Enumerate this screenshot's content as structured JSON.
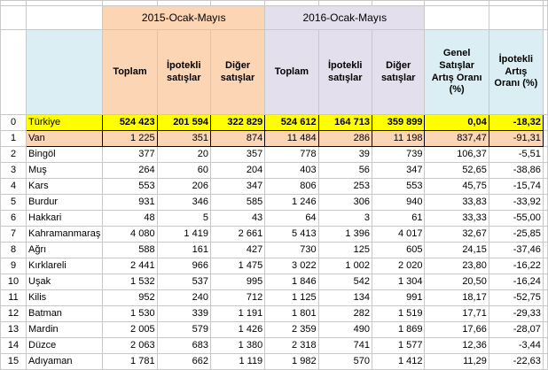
{
  "group_headers": {
    "g2015": "2015-Ocak-Mayıs",
    "g2016": "2016-Ocak-Mayıs"
  },
  "column_headers": {
    "toplam_2015": "Toplam",
    "ipotekli_2015": "İpotekli satışlar",
    "diger_2015": "Diğer satışlar",
    "toplam_2016": "Toplam",
    "ipotekli_2016": "İpotekli satışlar",
    "diger_2016": "Diğer satışlar",
    "genel": "Genel Satışlar Artış Oranı (%)",
    "ipotekli_artis": "İpotekli Artış Oranı (%)"
  },
  "rows": [
    {
      "idx": "0",
      "name": "Türkiye",
      "c1": "524 423",
      "c2": "201 594",
      "c3": "322 829",
      "c4": "524 612",
      "c5": "164 713",
      "c6": "359 899",
      "c7": "0,04",
      "c8": "-18,32"
    },
    {
      "idx": "1",
      "name": "Van",
      "c1": "1 225",
      "c2": "351",
      "c3": "874",
      "c4": "11 484",
      "c5": "286",
      "c6": "11 198",
      "c7": "837,47",
      "c8": "-91,31"
    },
    {
      "idx": "2",
      "name": "Bingöl",
      "c1": "377",
      "c2": "20",
      "c3": "357",
      "c4": "778",
      "c5": "39",
      "c6": "739",
      "c7": "106,37",
      "c8": "-5,51"
    },
    {
      "idx": "3",
      "name": "Muş",
      "c1": "264",
      "c2": "60",
      "c3": "204",
      "c4": "403",
      "c5": "56",
      "c6": "347",
      "c7": "52,65",
      "c8": "-38,86"
    },
    {
      "idx": "4",
      "name": "Kars",
      "c1": "553",
      "c2": "206",
      "c3": "347",
      "c4": "806",
      "c5": "253",
      "c6": "553",
      "c7": "45,75",
      "c8": "-15,74"
    },
    {
      "idx": "5",
      "name": "Burdur",
      "c1": "931",
      "c2": "346",
      "c3": "585",
      "c4": "1 246",
      "c5": "306",
      "c6": "940",
      "c7": "33,83",
      "c8": "-33,92"
    },
    {
      "idx": "6",
      "name": "Hakkari",
      "c1": "48",
      "c2": "5",
      "c3": "43",
      "c4": "64",
      "c5": "3",
      "c6": "61",
      "c7": "33,33",
      "c8": "-55,00"
    },
    {
      "idx": "7",
      "name": "Kahramanmaraş",
      "c1": "4 080",
      "c2": "1 419",
      "c3": "2 661",
      "c4": "5 413",
      "c5": "1 396",
      "c6": "4 017",
      "c7": "32,67",
      "c8": "-25,85"
    },
    {
      "idx": "8",
      "name": "Ağrı",
      "c1": "588",
      "c2": "161",
      "c3": "427",
      "c4": "730",
      "c5": "125",
      "c6": "605",
      "c7": "24,15",
      "c8": "-37,46"
    },
    {
      "idx": "9",
      "name": "Kırklareli",
      "c1": "2 441",
      "c2": "966",
      "c3": "1 475",
      "c4": "3 022",
      "c5": "1 002",
      "c6": "2 020",
      "c7": "23,80",
      "c8": "-16,22"
    },
    {
      "idx": "10",
      "name": "Uşak",
      "c1": "1 532",
      "c2": "537",
      "c3": "995",
      "c4": "1 846",
      "c5": "542",
      "c6": "1 304",
      "c7": "20,50",
      "c8": "-16,24"
    },
    {
      "idx": "11",
      "name": "Kilis",
      "c1": "952",
      "c2": "240",
      "c3": "712",
      "c4": "1 125",
      "c5": "134",
      "c6": "991",
      "c7": "18,17",
      "c8": "-52,75"
    },
    {
      "idx": "12",
      "name": "Batman",
      "c1": "1 530",
      "c2": "339",
      "c3": "1 191",
      "c4": "1 801",
      "c5": "282",
      "c6": "1 519",
      "c7": "17,71",
      "c8": "-29,33"
    },
    {
      "idx": "13",
      "name": "Mardin",
      "c1": "2 005",
      "c2": "579",
      "c3": "1 426",
      "c4": "2 359",
      "c5": "490",
      "c6": "1 869",
      "c7": "17,66",
      "c8": "-28,07"
    },
    {
      "idx": "14",
      "name": "Düzce",
      "c1": "2 063",
      "c2": "683",
      "c3": "1 380",
      "c4": "2 318",
      "c5": "741",
      "c6": "1 577",
      "c7": "12,36",
      "c8": "-3,44"
    },
    {
      "idx": "15",
      "name": "Adıyaman",
      "c1": "1 781",
      "c2": "662",
      "c3": "1 119",
      "c4": "1 982",
      "c5": "570",
      "c6": "1 412",
      "c7": "11,29",
      "c8": "-22,63"
    }
  ],
  "colors": {
    "peach": "#fcd5b4",
    "lavender": "#e4dfec",
    "light_blue": "#daeef3",
    "highlight_yellow": "#ffff00"
  }
}
